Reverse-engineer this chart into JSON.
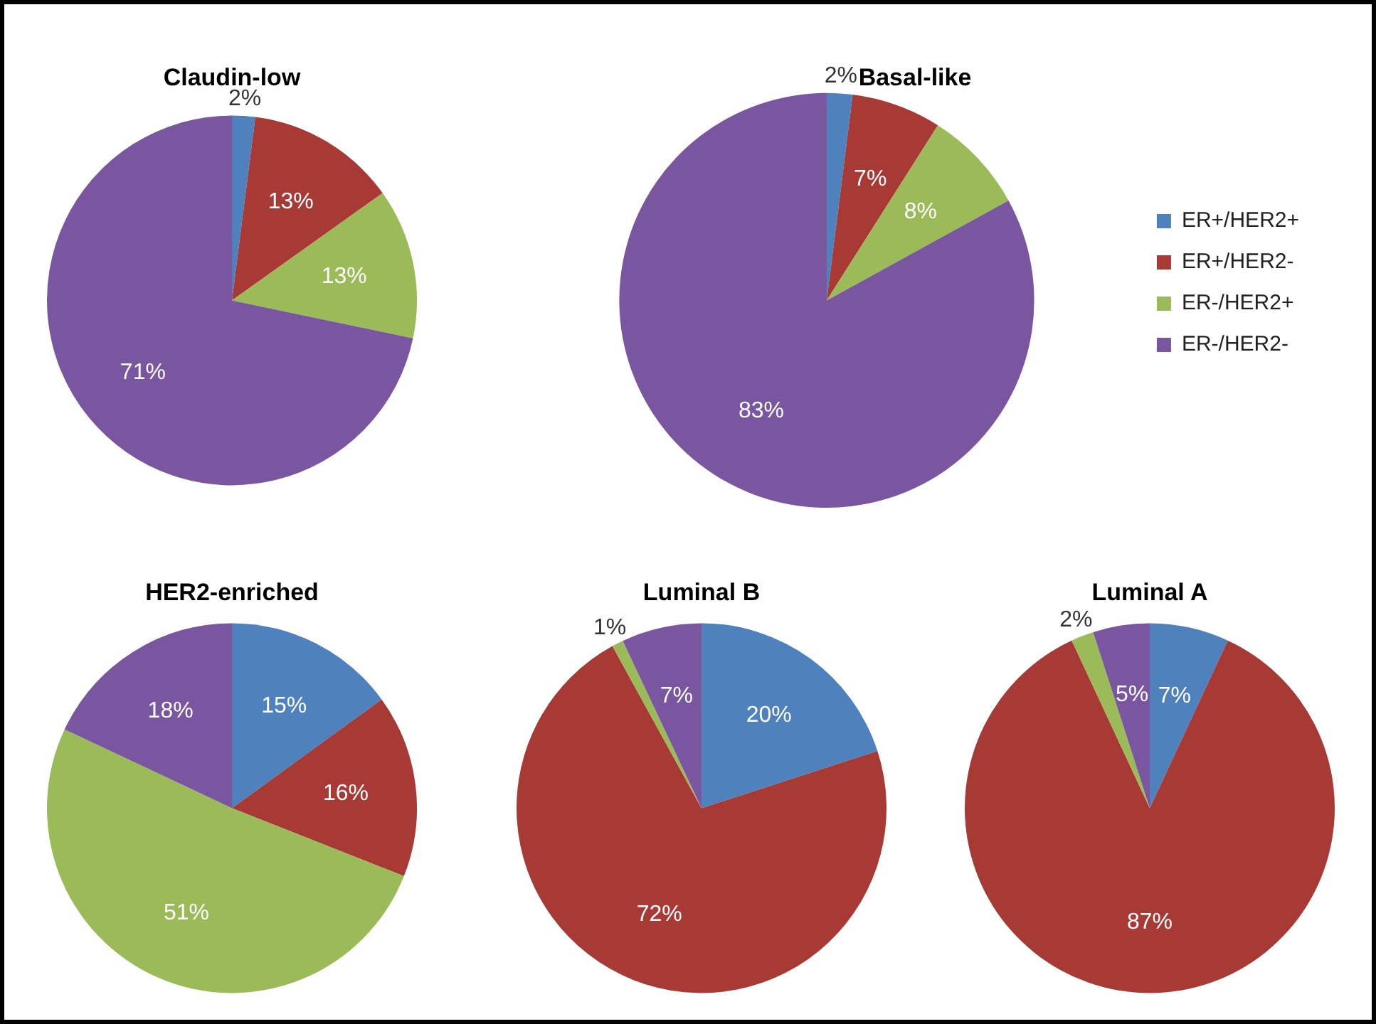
{
  "chart_data": [
    {
      "type": "pie",
      "title": "Claudin-low",
      "categories": [
        null,
        null,
        null,
        null
      ],
      "values": [
        2,
        13,
        13,
        71
      ],
      "value_labels": [
        "2%",
        "13%",
        "13%",
        "71%"
      ],
      "colors": [
        "#4f81bd",
        "#a83a36",
        "#9bbb59",
        "#7b56a0"
      ],
      "legend": false
    },
    {
      "type": "pie",
      "title": "Basal-like",
      "categories": [
        "ER+/HER2+",
        "ER+/HER2-",
        "ER-/HER2+",
        "ER-/HER2-"
      ],
      "values": [
        2,
        7,
        8,
        83
      ],
      "value_labels": [
        "2%",
        "7%",
        "8%",
        "83%"
      ],
      "colors": [
        "#4f81bd",
        "#a83a36",
        "#9bbb59",
        "#7b56a0"
      ],
      "legend": "right"
    },
    {
      "type": "pie",
      "title": "HER2-enriched",
      "categories": [
        null,
        null,
        null,
        null
      ],
      "values": [
        15,
        16,
        51,
        18
      ],
      "value_labels": [
        "15%",
        "16%",
        "51%",
        "18%"
      ],
      "colors": [
        "#4f81bd",
        "#a83a36",
        "#9bbb59",
        "#7b56a0"
      ],
      "legend": false
    },
    {
      "type": "pie",
      "title": "Luminal B",
      "categories": [
        null,
        null,
        null,
        null
      ],
      "values": [
        20,
        72,
        1,
        7
      ],
      "value_labels": [
        "20%",
        "72%",
        "1%",
        "7%"
      ],
      "colors": [
        "#4f81bd",
        "#a83a36",
        "#9bbb59",
        "#7b56a0"
      ],
      "legend": false
    },
    {
      "type": "pie",
      "title": "Luminal A",
      "categories": [
        null,
        null,
        null,
        null
      ],
      "values": [
        7,
        87,
        2,
        5
      ],
      "value_labels": [
        "7%",
        "87%",
        "2%",
        "5%"
      ],
      "colors": [
        "#4f81bd",
        "#a83a36",
        "#9bbb59",
        "#7b56a0"
      ],
      "legend": false
    }
  ]
}
